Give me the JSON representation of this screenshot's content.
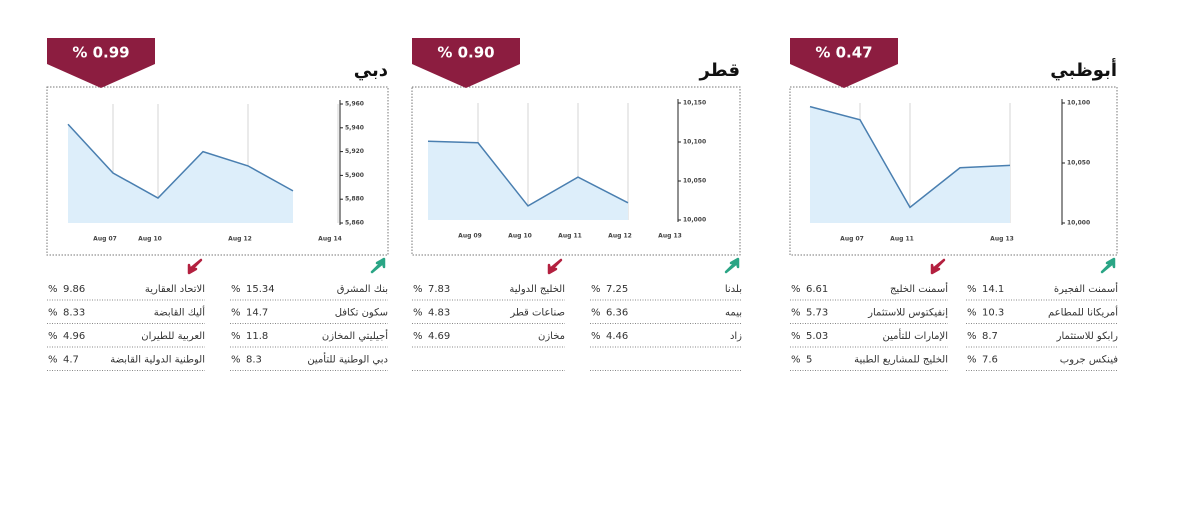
{
  "unit": "%",
  "chart_data": [
    {
      "type": "line",
      "title": "دبي",
      "change": "% 0.99",
      "categories": [
        null,
        "Aug 07",
        "Aug 10",
        null,
        "Aug 12",
        null,
        "Aug 14"
      ],
      "values": [
        5943,
        5902,
        5881,
        5920,
        5908,
        5887,
        null
      ],
      "color": "#4a7fb0",
      "fill": "#ddeefa",
      "ylim": [
        5860,
        5960
      ],
      "yticks": [
        {
          "value": 5860,
          "label": "5,860"
        },
        {
          "value": 5880,
          "label": "5,880"
        },
        {
          "value": 5900,
          "label": "5,900"
        },
        {
          "value": 5920,
          "label": "5,920"
        },
        {
          "value": 5940,
          "label": "5,940"
        },
        {
          "value": 5960,
          "label": "5,960"
        }
      ]
    },
    {
      "type": "line",
      "title": "قطر",
      "change": "% 0.90",
      "categories": [
        null,
        "Aug 09",
        "Aug 10",
        "Aug 11",
        "Aug 12",
        "Aug 13"
      ],
      "values": [
        10101,
        10099,
        10018,
        10055,
        10022,
        null
      ],
      "color": "#4a7fb0",
      "fill": "#ddeefa",
      "ylim": [
        10000,
        10150
      ],
      "yticks": [
        {
          "value": 10000,
          "label": "10,000"
        },
        {
          "value": 10050,
          "label": "10,050"
        },
        {
          "value": 10100,
          "label": "10,100"
        },
        {
          "value": 10150,
          "label": "10,150"
        }
      ]
    },
    {
      "type": "line",
      "title": "أبوظبي",
      "change": "% 0.47",
      "categories": [
        null,
        "Aug 07",
        "Aug 11",
        null,
        "Aug 13"
      ],
      "values": [
        10097,
        10086,
        10013,
        10046,
        10048
      ],
      "color": "#4a7fb0",
      "fill": "#ddeefa",
      "ylim": [
        10000,
        10100
      ],
      "yticks": [
        {
          "value": 10000,
          "label": "10,000"
        },
        {
          "value": 10050,
          "label": "10,050"
        },
        {
          "value": 10100,
          "label": "10,100"
        }
      ]
    }
  ],
  "tables": [
    {
      "gainers": [
        {
          "name": "بنك المشرق",
          "value": 15.34
        },
        {
          "name": "سكون تكافل",
          "value": 14.7
        },
        {
          "name": "أجيليتي المخازن",
          "value": 11.8
        },
        {
          "name": "دبي الوطنية للتأمين",
          "value": 8.3
        }
      ],
      "losers": [
        {
          "name": "الاتحاد العقارية",
          "value": 9.86
        },
        {
          "name": "أليك القابضة",
          "value": 8.33
        },
        {
          "name": "العربية للطيران",
          "value": 4.96
        },
        {
          "name": "الوطنية الدولية القابضة",
          "value": 4.7
        }
      ]
    },
    {
      "gainers": [
        {
          "name": "بلدنا",
          "value": 7.25
        },
        {
          "name": "بيمه",
          "value": 6.36
        },
        {
          "name": "زاد",
          "value": 4.46
        }
      ],
      "losers": [
        {
          "name": "الخليج الدولية",
          "value": 7.83
        },
        {
          "name": "صناعات قطر",
          "value": 4.83
        },
        {
          "name": "مخازن",
          "value": 4.69
        }
      ]
    },
    {
      "gainers": [
        {
          "name": "أسمنت الفجيرة",
          "value": 14.1
        },
        {
          "name": "أمريكانا للمطاعم",
          "value": 10.3
        },
        {
          "name": "رابكو للاستثمار",
          "value": 8.7
        },
        {
          "name": "فينكس جروب",
          "value": 7.6
        }
      ],
      "losers": [
        {
          "name": "أسمنت الخليج",
          "value": 6.61
        },
        {
          "name": "إنفيكتوس للاستثمار",
          "value": 5.73
        },
        {
          "name": "الإمارات للتأمين",
          "value": 5.03
        },
        {
          "name": "الخليج للمشاريع الطبية",
          "value": 5
        }
      ]
    }
  ]
}
